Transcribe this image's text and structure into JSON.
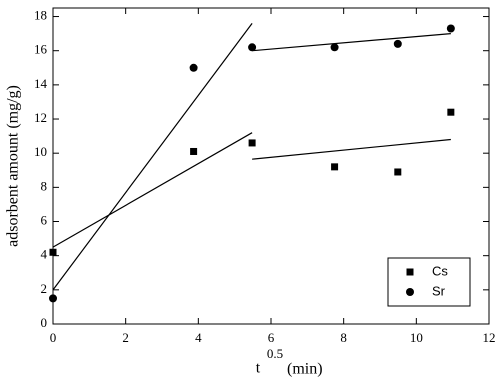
{
  "chart_data": {
    "type": "scatter",
    "xlabel": "t",
    "xlabel_exponent": "0.5",
    "xlabel_unit": "(min)",
    "ylabel": "adsorbent amount (mg/g)",
    "xlim": [
      0,
      12
    ],
    "xticks": [
      0,
      2,
      4,
      6,
      8,
      10,
      12
    ],
    "ylim": [
      0,
      18.5
    ],
    "yticks": [
      0,
      2,
      4,
      6,
      8,
      10,
      12,
      14,
      16,
      18
    ],
    "legend": "lower right",
    "series": [
      {
        "name": "Cs",
        "color": "#000000",
        "marker": "square",
        "x": [
          0,
          3.87,
          5.48,
          7.75,
          9.49,
          10.95
        ],
        "values": [
          4.2,
          10.1,
          10.6,
          9.2,
          8.9,
          12.4
        ]
      },
      {
        "name": "Sr",
        "color": "#000000",
        "marker": "circle",
        "x": [
          0,
          3.87,
          5.48,
          7.75,
          9.49,
          10.95
        ],
        "values": [
          1.5,
          15.0,
          16.2,
          16.2,
          16.4,
          17.3
        ]
      }
    ],
    "lines": [
      {
        "x": [
          0,
          5.48
        ],
        "values": [
          4.5,
          11.2
        ]
      },
      {
        "x": [
          5.48,
          10.95
        ],
        "values": [
          9.65,
          10.8
        ]
      },
      {
        "x": [
          0,
          5.48
        ],
        "values": [
          2.0,
          17.6
        ]
      },
      {
        "x": [
          5.48,
          10.95
        ],
        "values": [
          16.0,
          17.0
        ]
      }
    ]
  }
}
